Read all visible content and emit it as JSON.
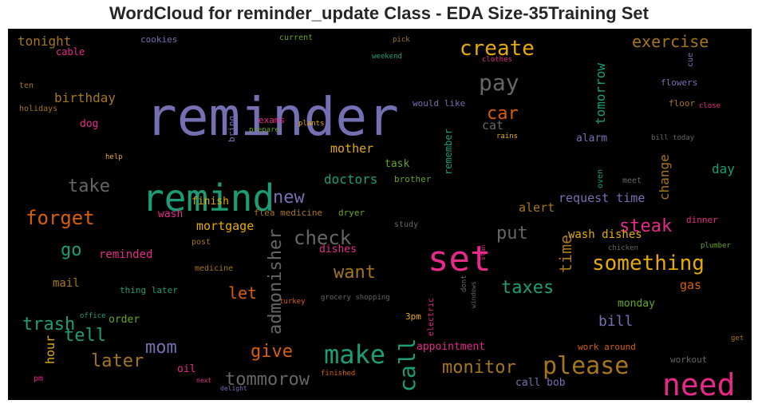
{
  "chart_data": {
    "type": "wordcloud",
    "title": "WordCloud for reminder_update Class - EDA Size-35Training Set",
    "background": "#000000",
    "palette": {
      "purple": "#7570b3",
      "green": "#1b9e77",
      "orange": "#d95f02",
      "pink": "#e7298a",
      "lime": "#66a61e",
      "gold": "#e6ab02",
      "brown": "#a6761d",
      "gray": "#666666"
    },
    "words": [
      {
        "text": "reminder",
        "color": "purple"
      },
      {
        "text": "remind",
        "color": "green"
      },
      {
        "text": "set",
        "color": "pink"
      },
      {
        "text": "need",
        "color": "pink"
      },
      {
        "text": "make",
        "color": "green"
      },
      {
        "text": "please",
        "color": "brown"
      },
      {
        "text": "create",
        "color": "gold"
      },
      {
        "text": "pay",
        "color": "gray"
      },
      {
        "text": "something",
        "color": "gold"
      },
      {
        "text": "call",
        "color": "green"
      },
      {
        "text": "forget",
        "color": "orange"
      },
      {
        "text": "check",
        "color": "gray"
      },
      {
        "text": "admonisher",
        "color": "gray"
      },
      {
        "text": "steak",
        "color": "pink"
      },
      {
        "text": "monitor",
        "color": "brown"
      },
      {
        "text": "tommorow",
        "color": "gray"
      },
      {
        "text": "taxes",
        "color": "green"
      },
      {
        "text": "later",
        "color": "brown"
      },
      {
        "text": "take",
        "color": "gray"
      },
      {
        "text": "trash",
        "color": "green"
      },
      {
        "text": "tell",
        "color": "green"
      },
      {
        "text": "mom",
        "color": "purple"
      },
      {
        "text": "give",
        "color": "orange"
      },
      {
        "text": "want",
        "color": "brown"
      },
      {
        "text": "put",
        "color": "gray"
      },
      {
        "text": "new",
        "color": "purple"
      },
      {
        "text": "go",
        "color": "green"
      },
      {
        "text": "car",
        "color": "orange"
      },
      {
        "text": "exercise",
        "color": "brown"
      },
      {
        "text": "time",
        "color": "brown"
      },
      {
        "text": "let",
        "color": "orange"
      },
      {
        "text": "tomorrow",
        "color": "green"
      },
      {
        "text": "change",
        "color": "brown"
      },
      {
        "text": "bill",
        "color": "purple"
      },
      {
        "text": "birthday",
        "color": "brown"
      },
      {
        "text": "tonight",
        "color": "brown"
      },
      {
        "text": "mother",
        "color": "gold"
      },
      {
        "text": "doctors",
        "color": "green"
      },
      {
        "text": "request time",
        "color": "purple"
      },
      {
        "text": "mortgage",
        "color": "gold"
      },
      {
        "text": "hour",
        "color": "gold"
      },
      {
        "text": "alert",
        "color": "brown"
      },
      {
        "text": "day",
        "color": "green"
      },
      {
        "text": "gas",
        "color": "orange"
      },
      {
        "text": "wash dishes",
        "color": "gold"
      },
      {
        "text": "reminded",
        "color": "pink"
      },
      {
        "text": "cat",
        "color": "gray"
      },
      {
        "text": "remember",
        "color": "green"
      },
      {
        "text": "mail",
        "color": "brown"
      },
      {
        "text": "appointment",
        "color": "pink"
      },
      {
        "text": "alarm",
        "color": "purple"
      },
      {
        "text": "finish",
        "color": "gold"
      },
      {
        "text": "dog",
        "color": "pink"
      },
      {
        "text": "task",
        "color": "lime"
      },
      {
        "text": "wash",
        "color": "pink"
      },
      {
        "text": "order",
        "color": "lime"
      },
      {
        "text": "oil",
        "color": "pink"
      },
      {
        "text": "dishes",
        "color": "pink"
      },
      {
        "text": "call bob",
        "color": "purple"
      },
      {
        "text": "monday",
        "color": "lime"
      },
      {
        "text": "work around",
        "color": "orange"
      },
      {
        "text": "flowers",
        "color": "purple"
      },
      {
        "text": "floor",
        "color": "brown"
      },
      {
        "text": "cable",
        "color": "pink"
      },
      {
        "text": "cookies",
        "color": "purple"
      },
      {
        "text": "current",
        "color": "lime"
      },
      {
        "text": "would like",
        "color": "purple"
      },
      {
        "text": "exams",
        "color": "pink"
      },
      {
        "text": "bring",
        "color": "purple"
      },
      {
        "text": "dinner",
        "color": "pink"
      },
      {
        "text": "flea medicine",
        "color": "brown"
      },
      {
        "text": "dryer",
        "color": "lime"
      },
      {
        "text": "brother",
        "color": "lime"
      },
      {
        "text": "oven",
        "color": "green"
      },
      {
        "text": "meet",
        "color": "gray"
      },
      {
        "text": "workout",
        "color": "gray"
      },
      {
        "text": "cue",
        "color": "purple"
      },
      {
        "text": "thing later",
        "color": "green"
      },
      {
        "text": "3pm",
        "color": "gold"
      },
      {
        "text": "plants",
        "color": "gold"
      },
      {
        "text": "ten",
        "color": "brown"
      },
      {
        "text": "holidays",
        "color": "brown"
      },
      {
        "text": "pm",
        "color": "pink"
      },
      {
        "text": "study",
        "color": "gray"
      },
      {
        "text": "post",
        "color": "brown"
      },
      {
        "text": "medicine",
        "color": "brown"
      },
      {
        "text": "electric",
        "color": "pink"
      },
      {
        "text": "prepare",
        "color": "lime"
      },
      {
        "text": "weekend",
        "color": "green"
      },
      {
        "text": "pick",
        "color": "brown"
      },
      {
        "text": "clothes",
        "color": "pink"
      },
      {
        "text": "close",
        "color": "pink"
      },
      {
        "text": "rains",
        "color": "gold"
      },
      {
        "text": "bill today",
        "color": "gray"
      },
      {
        "text": "help",
        "color": "gold"
      },
      {
        "text": "chicken",
        "color": "gray"
      },
      {
        "text": "plumber",
        "color": "lime"
      },
      {
        "text": "office",
        "color": "green"
      },
      {
        "text": "turkey",
        "color": "orange"
      },
      {
        "text": "grocery shopping",
        "color": "gray"
      },
      {
        "text": "dont",
        "color": "gray"
      },
      {
        "text": "windows",
        "color": "gray"
      },
      {
        "text": "stan",
        "color": "pink"
      },
      {
        "text": "next",
        "color": "pink"
      },
      {
        "text": "delight",
        "color": "purple"
      },
      {
        "text": "finished",
        "color": "orange"
      },
      {
        "text": "get",
        "color": "brown"
      }
    ]
  }
}
